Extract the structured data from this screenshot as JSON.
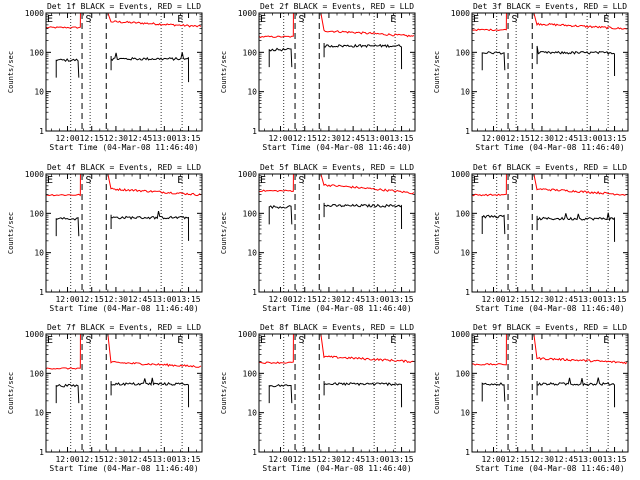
{
  "figure": {
    "xlabel": "Start Time (04-Mar-08 11:46:40)",
    "ylabel": "Counts/sec",
    "colors": {
      "events": "#000000",
      "lld": "#ff0000",
      "frame": "#000000"
    }
  },
  "chart_data": [
    {
      "type": "line",
      "title": "Det 1f BLACK = Events, RED = LLD",
      "xlabel": "Start Time (04-Mar-08 11:46:40)",
      "ylabel": "Counts/sec",
      "x_ticks": [
        "12:00",
        "12:15",
        "12:30",
        "12:45",
        "13:00",
        "13:15"
      ],
      "y_ticks": [
        "1",
        "10",
        "100",
        "1000"
      ],
      "yscale": "log",
      "ylim": [
        1,
        1000
      ],
      "markers": [
        "S",
        "E"
      ],
      "series": [
        {
          "name": "LLD",
          "color": "#ff0000",
          "level_start": 480,
          "level_end": 460
        },
        {
          "name": "Events",
          "color": "#000000",
          "level_start": 65,
          "level_end": 70
        }
      ]
    },
    {
      "type": "line",
      "title": "Det 2f BLACK = Events, RED = LLD",
      "xlabel": "Start Time (04-Mar-08 11:46:40)",
      "ylabel": "Counts/sec",
      "x_ticks": [
        "12:00",
        "12:15",
        "12:30",
        "12:45",
        "13:00",
        "13:15"
      ],
      "y_ticks": [
        "1",
        "10",
        "100",
        "1000"
      ],
      "yscale": "log",
      "ylim": [
        1,
        1000
      ],
      "markers": [
        "S",
        "E"
      ],
      "series": [
        {
          "name": "LLD",
          "color": "#ff0000",
          "level_start": 280,
          "level_end": 260
        },
        {
          "name": "Events",
          "color": "#000000",
          "level_start": 120,
          "level_end": 150
        }
      ]
    },
    {
      "type": "line",
      "title": "Det 3f BLACK = Events, RED = LLD",
      "xlabel": "Start Time (04-Mar-08 11:46:40)",
      "ylabel": "Counts/sec",
      "x_ticks": [
        "12:00",
        "12:15",
        "12:30",
        "12:45",
        "13:00",
        "13:15"
      ],
      "y_ticks": [
        "1",
        "10",
        "100",
        "1000"
      ],
      "yscale": "log",
      "ylim": [
        1,
        1000
      ],
      "markers": [
        "S",
        "E"
      ],
      "series": [
        {
          "name": "LLD",
          "color": "#ff0000",
          "level_start": 420,
          "level_end": 400
        },
        {
          "name": "Events",
          "color": "#000000",
          "level_start": 100,
          "level_end": 100
        }
      ]
    },
    {
      "type": "line",
      "title": "Det 4f BLACK = Events, RED = LLD",
      "xlabel": "Start Time (04-Mar-08 11:46:40)",
      "ylabel": "Counts/sec",
      "x_ticks": [
        "12:00",
        "12:15",
        "12:30",
        "12:45",
        "13:00",
        "13:15"
      ],
      "y_ticks": [
        "1",
        "10",
        "100",
        "1000"
      ],
      "yscale": "log",
      "ylim": [
        1,
        1000
      ],
      "markers": [
        "S",
        "E"
      ],
      "series": [
        {
          "name": "LLD",
          "color": "#ff0000",
          "level_start": 330,
          "level_end": 300
        },
        {
          "name": "Events",
          "color": "#000000",
          "level_start": 75,
          "level_end": 80
        }
      ]
    },
    {
      "type": "line",
      "title": "Det 5f BLACK = Events, RED = LLD",
      "xlabel": "Start Time (04-Mar-08 11:46:40)",
      "ylabel": "Counts/sec",
      "x_ticks": [
        "12:00",
        "12:15",
        "12:30",
        "12:45",
        "13:00",
        "13:15"
      ],
      "y_ticks": [
        "1",
        "10",
        "100",
        "1000"
      ],
      "yscale": "log",
      "ylim": [
        1,
        1000
      ],
      "markers": [
        "S",
        "E"
      ],
      "series": [
        {
          "name": "LLD",
          "color": "#ff0000",
          "level_start": 420,
          "level_end": 330
        },
        {
          "name": "Events",
          "color": "#000000",
          "level_start": 150,
          "level_end": 160
        }
      ]
    },
    {
      "type": "line",
      "title": "Det 6f BLACK = Events, RED = LLD",
      "xlabel": "Start Time (04-Mar-08 11:46:40)",
      "ylabel": "Counts/sec",
      "x_ticks": [
        "12:00",
        "12:15",
        "12:30",
        "12:45",
        "13:00",
        "13:15"
      ],
      "y_ticks": [
        "1",
        "10",
        "100",
        "1000"
      ],
      "yscale": "log",
      "ylim": [
        1,
        1000
      ],
      "markers": [
        "S",
        "E"
      ],
      "series": [
        {
          "name": "LLD",
          "color": "#ff0000",
          "level_start": 330,
          "level_end": 300
        },
        {
          "name": "Events",
          "color": "#000000",
          "level_start": 85,
          "level_end": 75
        }
      ]
    },
    {
      "type": "line",
      "title": "Det 7f BLACK = Events, RED = LLD",
      "xlabel": "Start Time (04-Mar-08 11:46:40)",
      "ylabel": "Counts/sec",
      "x_ticks": [
        "12:00",
        "12:15",
        "12:30",
        "12:45",
        "13:00",
        "13:15"
      ],
      "y_ticks": [
        "1",
        "10",
        "100",
        "1000"
      ],
      "yscale": "log",
      "ylim": [
        1,
        1000
      ],
      "markers": [
        "S",
        "E"
      ],
      "series": [
        {
          "name": "LLD",
          "color": "#ff0000",
          "level_start": 150,
          "level_end": 150
        },
        {
          "name": "Events",
          "color": "#000000",
          "level_start": 50,
          "level_end": 55
        }
      ]
    },
    {
      "type": "line",
      "title": "Det 8f BLACK = Events, RED = LLD",
      "xlabel": "Start Time (04-Mar-08 11:46:40)",
      "ylabel": "Counts/sec",
      "x_ticks": [
        "12:00",
        "12:15",
        "12:30",
        "12:45",
        "13:00",
        "13:15"
      ],
      "y_ticks": [
        "1",
        "10",
        "100",
        "1000"
      ],
      "yscale": "log",
      "ylim": [
        1,
        1000
      ],
      "markers": [
        "S",
        "E"
      ],
      "series": [
        {
          "name": "LLD",
          "color": "#ff0000",
          "level_start": 210,
          "level_end": 200
        },
        {
          "name": "Events",
          "color": "#000000",
          "level_start": 50,
          "level_end": 55
        }
      ]
    },
    {
      "type": "line",
      "title": "Det 9f BLACK = Events, RED = LLD",
      "xlabel": "Start Time (04-Mar-08 11:46:40)",
      "ylabel": "Counts/sec",
      "x_ticks": [
        "12:00",
        "12:15",
        "12:30",
        "12:45",
        "13:00",
        "13:15"
      ],
      "y_ticks": [
        "1",
        "10",
        "100",
        "1000"
      ],
      "yscale": "log",
      "ylim": [
        1,
        1000
      ],
      "markers": [
        "S",
        "E"
      ],
      "series": [
        {
          "name": "LLD",
          "color": "#ff0000",
          "level_start": 190,
          "level_end": 190
        },
        {
          "name": "Events",
          "color": "#000000",
          "level_start": 55,
          "level_end": 55
        }
      ]
    }
  ]
}
